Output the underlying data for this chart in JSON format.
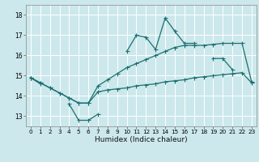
{
  "xlabel": "Humidex (Indice chaleur)",
  "bg_color": "#cce8ec",
  "grid_color": "#ffffff",
  "line_color": "#1a7070",
  "line_jagged": [
    14.9,
    14.6,
    null,
    null,
    13.6,
    12.8,
    12.8,
    13.1,
    null,
    null,
    16.2,
    17.0,
    16.9,
    16.3,
    17.85,
    17.2,
    16.6,
    16.6,
    null,
    15.85,
    15.85,
    15.3,
    null,
    null
  ],
  "line_upper": [
    14.9,
    14.65,
    14.4,
    14.15,
    13.9,
    13.65,
    13.65,
    14.5,
    14.8,
    15.1,
    15.4,
    15.6,
    15.8,
    16.0,
    16.2,
    16.4,
    16.5,
    16.5,
    16.5,
    16.55,
    16.6,
    16.6,
    16.6,
    14.7
  ],
  "line_lower": [
    14.9,
    14.65,
    14.4,
    14.15,
    13.9,
    13.65,
    13.65,
    14.2,
    14.3,
    14.35,
    14.4,
    14.5,
    14.55,
    14.6,
    14.7,
    14.75,
    14.8,
    14.9,
    14.95,
    15.0,
    15.05,
    15.1,
    15.15,
    14.65
  ],
  "x": [
    0,
    1,
    2,
    3,
    4,
    5,
    6,
    7,
    8,
    9,
    10,
    11,
    12,
    13,
    14,
    15,
    16,
    17,
    18,
    19,
    20,
    21,
    22,
    23
  ],
  "yticks": [
    13,
    14,
    15,
    16,
    17,
    18
  ],
  "xticks": [
    0,
    1,
    2,
    3,
    4,
    5,
    6,
    7,
    8,
    9,
    10,
    11,
    12,
    13,
    14,
    15,
    16,
    17,
    18,
    19,
    20,
    21,
    22,
    23
  ],
  "ylim": [
    12.5,
    18.5
  ],
  "xlim": [
    -0.5,
    23.5
  ],
  "marker_size": 2.0,
  "line_width": 0.9
}
